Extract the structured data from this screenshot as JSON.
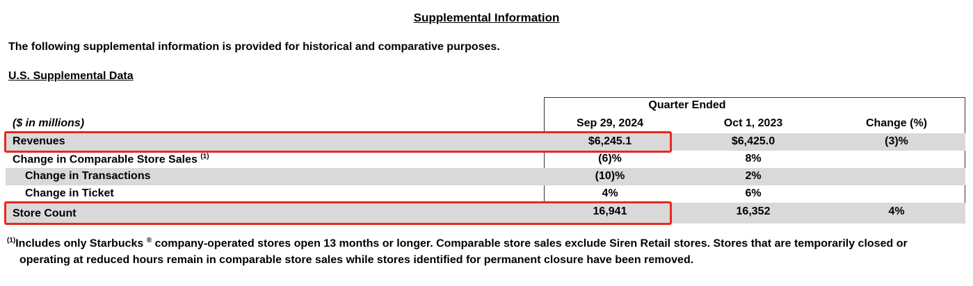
{
  "title": "Supplemental Information",
  "intro": "The following supplemental information is provided for historical and comparative purposes.",
  "subheading": "U.S. Supplemental Data",
  "table": {
    "units_label": "($ in millions)",
    "group_header": "Quarter Ended",
    "columns": [
      "Sep 29, 2024",
      "Oct 1, 2023",
      "Change (%)"
    ],
    "rows": [
      {
        "label": "Revenues",
        "note": "",
        "values": [
          "$6,245.1",
          "$6,425.0",
          "(3)%"
        ]
      },
      {
        "label": "Change in Comparable Store Sales",
        "note": "(1)",
        "values": [
          "(6)%",
          "8%",
          ""
        ]
      },
      {
        "label": "Change in Transactions",
        "note": "",
        "values": [
          "(10)%",
          "2%",
          ""
        ]
      },
      {
        "label": "Change in Ticket",
        "note": "",
        "values": [
          "4%",
          "6%",
          ""
        ]
      },
      {
        "label": "Store Count",
        "note": "",
        "values": [
          "16,941",
          "16,352",
          "4%"
        ]
      }
    ]
  },
  "footnote": {
    "marker": "(1)",
    "line1_a": "Includes only Starbucks",
    "registered": "®",
    "line1_b": " company-operated stores open 13 months or longer. Comparable store sales exclude Siren Retail stores. Stores that are temporarily closed or",
    "line2": "operating at reduced hours remain in comparable store sales while stores identified for permanent closure have been removed."
  },
  "highlight_color": "#e8281e"
}
